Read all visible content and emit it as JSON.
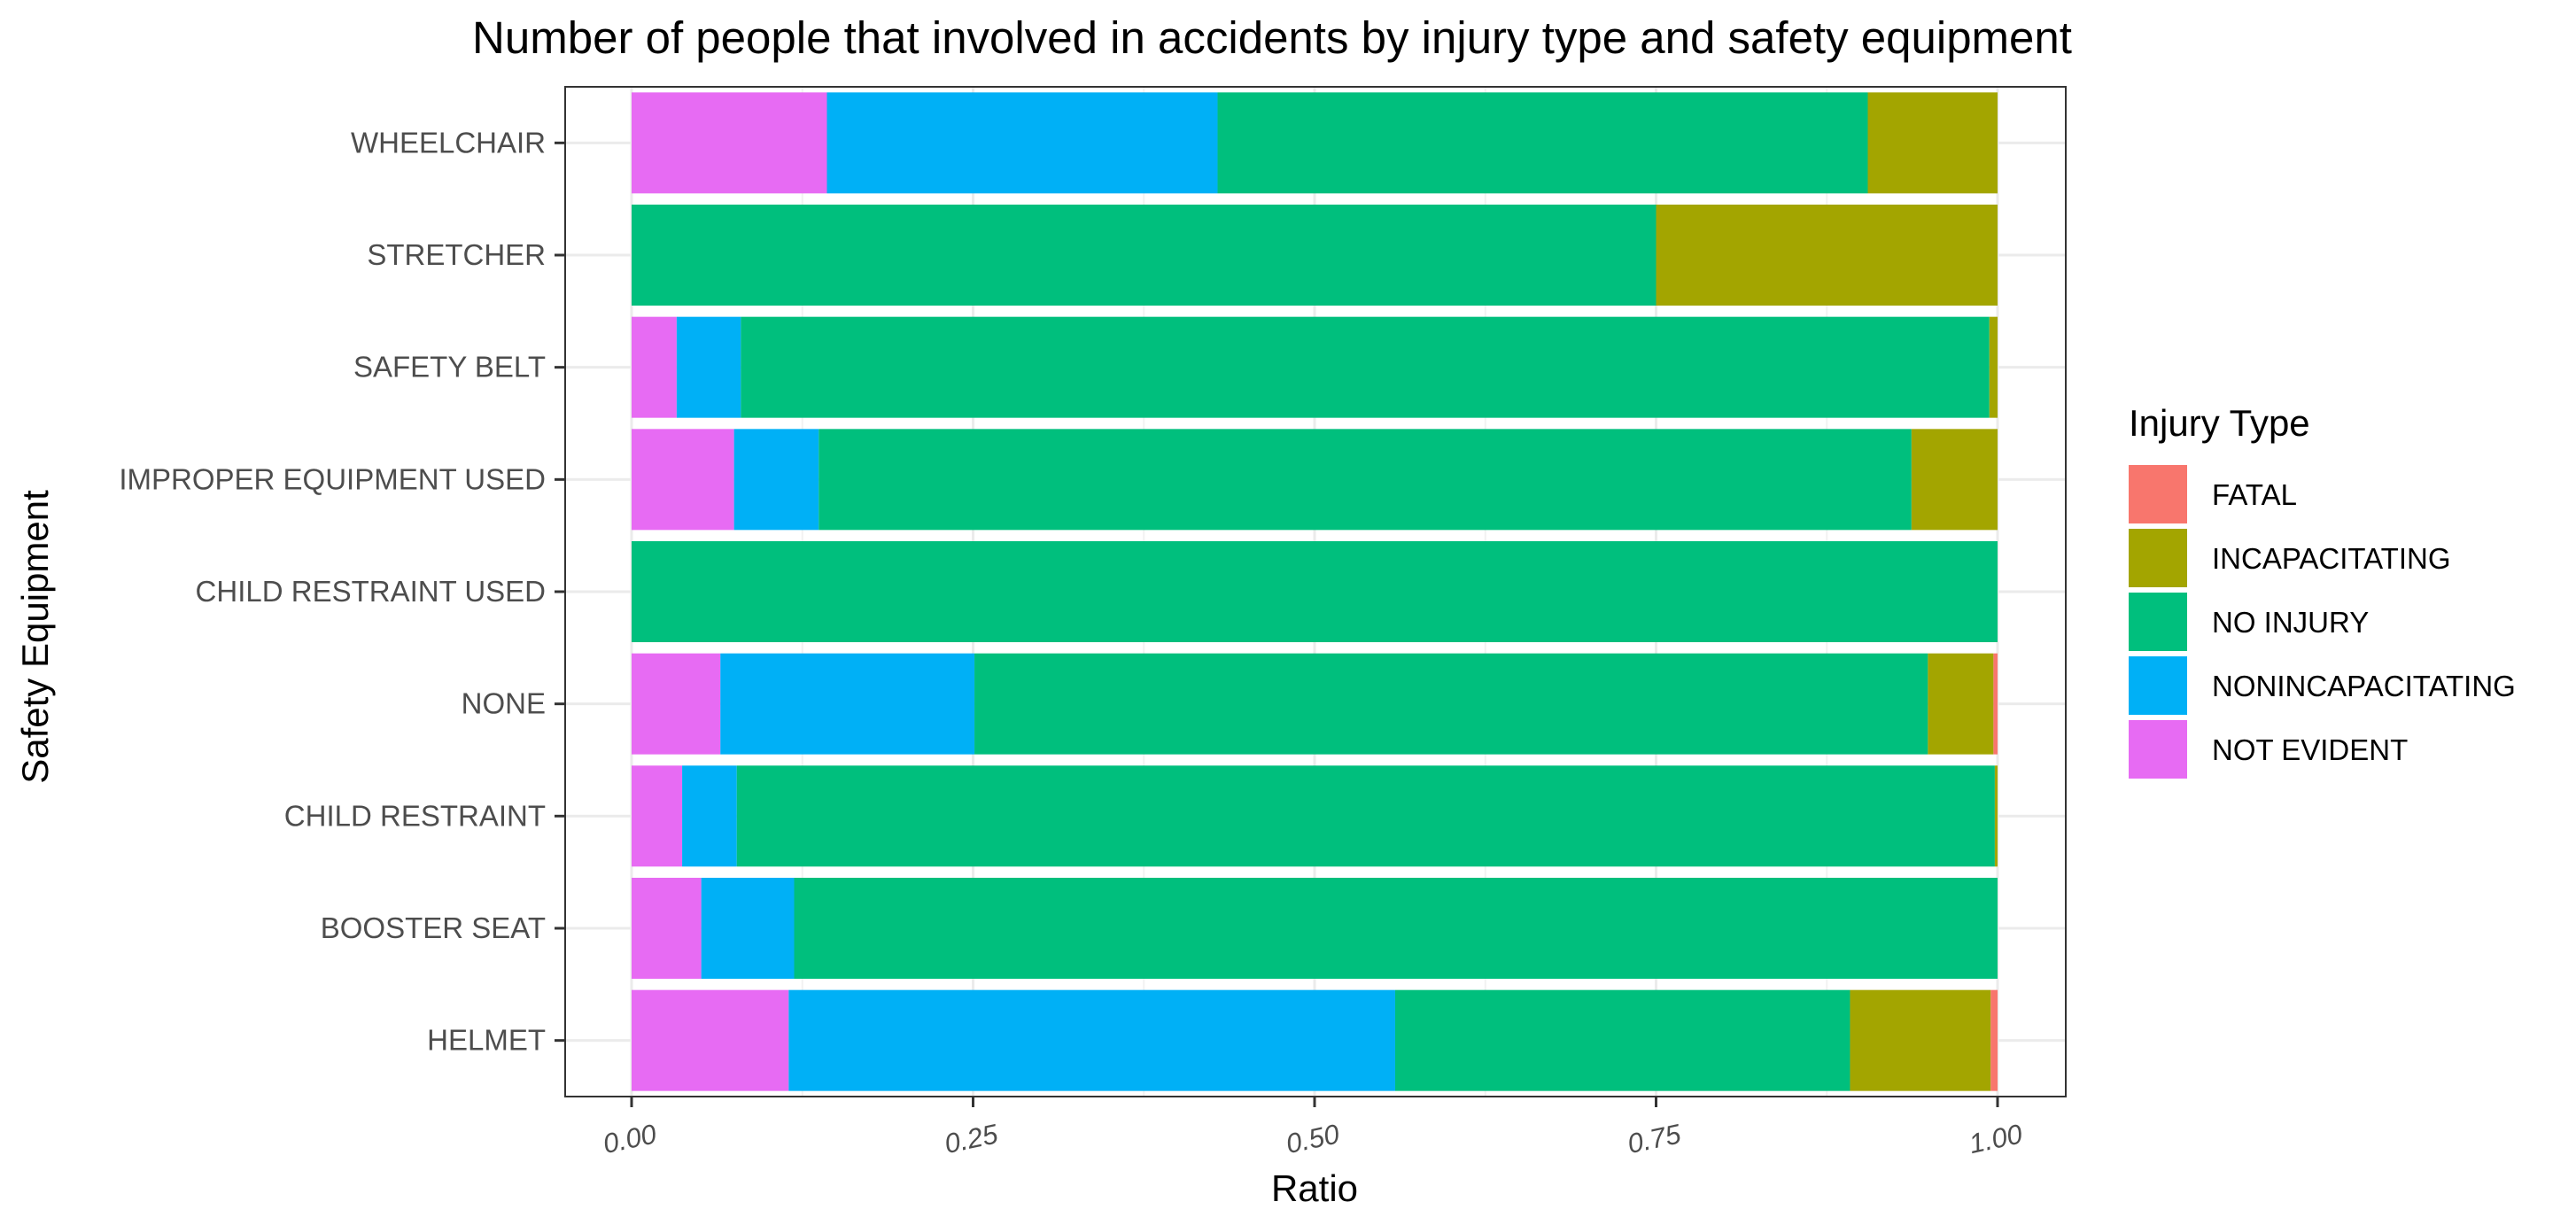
{
  "chart_data": {
    "type": "bar",
    "orientation": "horizontal",
    "stacked": true,
    "title": "Number of people that involved in accidents by injury type and safety equipment",
    "xlabel": "Ratio",
    "ylabel": "Safety Equipment",
    "xlim": [
      0,
      1
    ],
    "xticks": [
      "0.00",
      "0.25",
      "0.50",
      "0.75",
      "1.00"
    ],
    "grid": true,
    "legend": {
      "title": "Injury Type",
      "position": "right"
    },
    "categories": [
      "WHEELCHAIR",
      "STRETCHER",
      "SAFETY BELT",
      "IMPROPER EQUIPMENT USED",
      "CHILD RESTRAINT USED",
      "NONE",
      "CHILD RESTRAINT",
      "BOOSTER SEAT",
      "HELMET"
    ],
    "series": [
      {
        "name": "FATAL",
        "color": "#F8766D",
        "values": [
          0,
          0,
          0,
          0,
          0,
          0.003,
          0,
          0,
          0.005
        ]
      },
      {
        "name": "INCAPACITATING",
        "color": "#A3A500",
        "values": [
          0.095,
          0.25,
          0.006,
          0.063,
          0,
          0.048,
          0.002,
          0,
          0.103
        ]
      },
      {
        "name": "NO INJURY",
        "color": "#00BF7D",
        "values": [
          0.476,
          0.75,
          0.914,
          0.8,
          1,
          0.698,
          0.921,
          0.881,
          0.333
        ]
      },
      {
        "name": "NONINCAPACITATING",
        "color": "#00B0F6",
        "values": [
          0.286,
          0,
          0.047,
          0.062,
          0,
          0.186,
          0.04,
          0.068,
          0.444
        ]
      },
      {
        "name": "NOT EVIDENT",
        "color": "#E76BF3",
        "values": [
          0.143,
          0,
          0.033,
          0.075,
          0,
          0.065,
          0.037,
          0.051,
          0.115
        ]
      }
    ]
  }
}
